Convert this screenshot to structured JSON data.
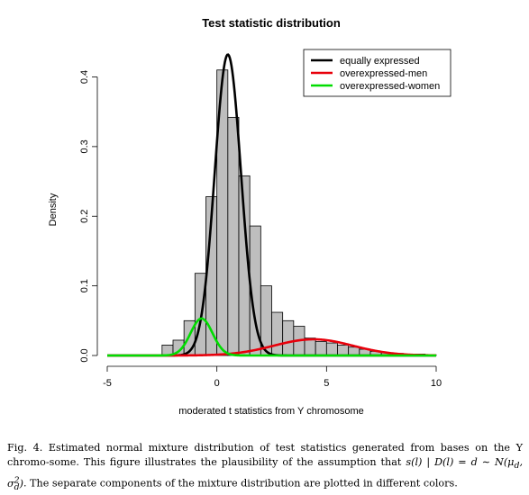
{
  "chart_data": {
    "type": "histogram",
    "title": "Test statistic distribution",
    "xlabel": "moderated t statistics from Y chromosome",
    "ylabel": "Density",
    "xlim": [
      -5,
      10.5
    ],
    "ylim": [
      0,
      0.43
    ],
    "x_ticks": [
      "-5",
      "0",
      "5",
      "10"
    ],
    "x_tick_values": [
      -5,
      0,
      5,
      10
    ],
    "y_ticks": [
      "0.0",
      "0.1",
      "0.2",
      "0.3",
      "0.4"
    ],
    "y_tick_values": [
      0,
      0.1,
      0.2,
      0.3,
      0.4
    ],
    "bin_width": 0.5,
    "bins": [
      {
        "x0": -2.5,
        "density": 0.015
      },
      {
        "x0": -2.0,
        "density": 0.022
      },
      {
        "x0": -1.5,
        "density": 0.05
      },
      {
        "x0": -1.0,
        "density": 0.118
      },
      {
        "x0": -0.5,
        "density": 0.228
      },
      {
        "x0": 0.0,
        "density": 0.41
      },
      {
        "x0": 0.5,
        "density": 0.342
      },
      {
        "x0": 1.0,
        "density": 0.258
      },
      {
        "x0": 1.5,
        "density": 0.186
      },
      {
        "x0": 2.0,
        "density": 0.1
      },
      {
        "x0": 2.5,
        "density": 0.062
      },
      {
        "x0": 3.0,
        "density": 0.05
      },
      {
        "x0": 3.5,
        "density": 0.042
      },
      {
        "x0": 4.0,
        "density": 0.025
      },
      {
        "x0": 4.5,
        "density": 0.02
      },
      {
        "x0": 5.0,
        "density": 0.018
      },
      {
        "x0": 5.5,
        "density": 0.015
      },
      {
        "x0": 6.0,
        "density": 0.012
      },
      {
        "x0": 6.5,
        "density": 0.009
      },
      {
        "x0": 7.0,
        "density": 0.006
      },
      {
        "x0": 7.5,
        "density": 0.004
      },
      {
        "x0": 8.0,
        "density": 0.003
      },
      {
        "x0": 8.5,
        "density": 0.002
      },
      {
        "x0": 9.0,
        "density": 0.002
      },
      {
        "x0": 9.5,
        "density": 0.001
      }
    ],
    "series": [
      {
        "name": "equally expressed",
        "color": "#000000",
        "mean": 0.5,
        "sd": 0.6,
        "weight": 0.65
      },
      {
        "name": "overexpressed-men",
        "color": "#e8000b",
        "mean": 4.4,
        "sd": 1.8,
        "weight": 0.105
      },
      {
        "name": "overexpressed-women",
        "color": "#00dd00",
        "mean": -0.7,
        "sd": 0.5,
        "weight": 0.0665
      }
    ],
    "curve_range": [
      -5,
      10
    ],
    "legend_position": "top-right",
    "grid": false
  },
  "caption": {
    "part1": "Fig. 4.  Estimated normal mixture distribution of test statistics generated from bases on the Y chromo-some. This figure illustrates the plausibility of the assumption that ",
    "math": "s(l) | D(l) = d ∼ N(μ",
    "math_sub1": "d",
    "math_mid": ", σ",
    "math_sup": "2",
    "math_sub2": "d",
    "math_end": ")",
    "part2": ". The separate components of the mixture distribution are plotted in different colors."
  }
}
